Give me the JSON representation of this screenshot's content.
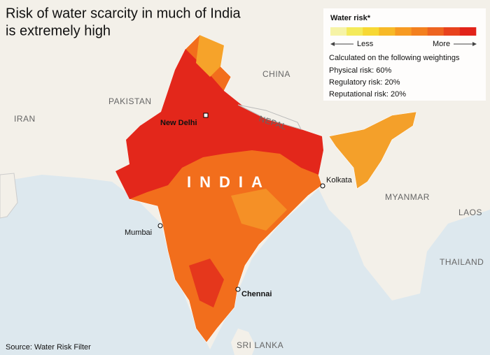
{
  "title": [
    "Risk of water scarcity in much of India",
    "is extremely high"
  ],
  "legend": {
    "title": "Water risk*",
    "less": "Less",
    "more": "More",
    "colors": [
      "#f6f3a6",
      "#f4ea5a",
      "#f7d834",
      "#f7b927",
      "#f79a22",
      "#f3801f",
      "#ee6420",
      "#e8421d",
      "#e2231a"
    ],
    "note": "Calculated on the following weightings",
    "weightings": [
      "Physical risk: 60%",
      "Regulatory risk: 20%",
      "Reputational risk: 20%"
    ]
  },
  "countries": [
    "CHINA",
    "PAKISTAN",
    "IRAN",
    "NEPAL",
    "INDIA",
    "MYANMAR",
    "LAOS",
    "THAILAND",
    "SRI LANKA"
  ],
  "cities": [
    "New Delhi",
    "Kolkata",
    "Mumbai",
    "Chennai"
  ],
  "source": "Source: Water Risk Filter"
}
